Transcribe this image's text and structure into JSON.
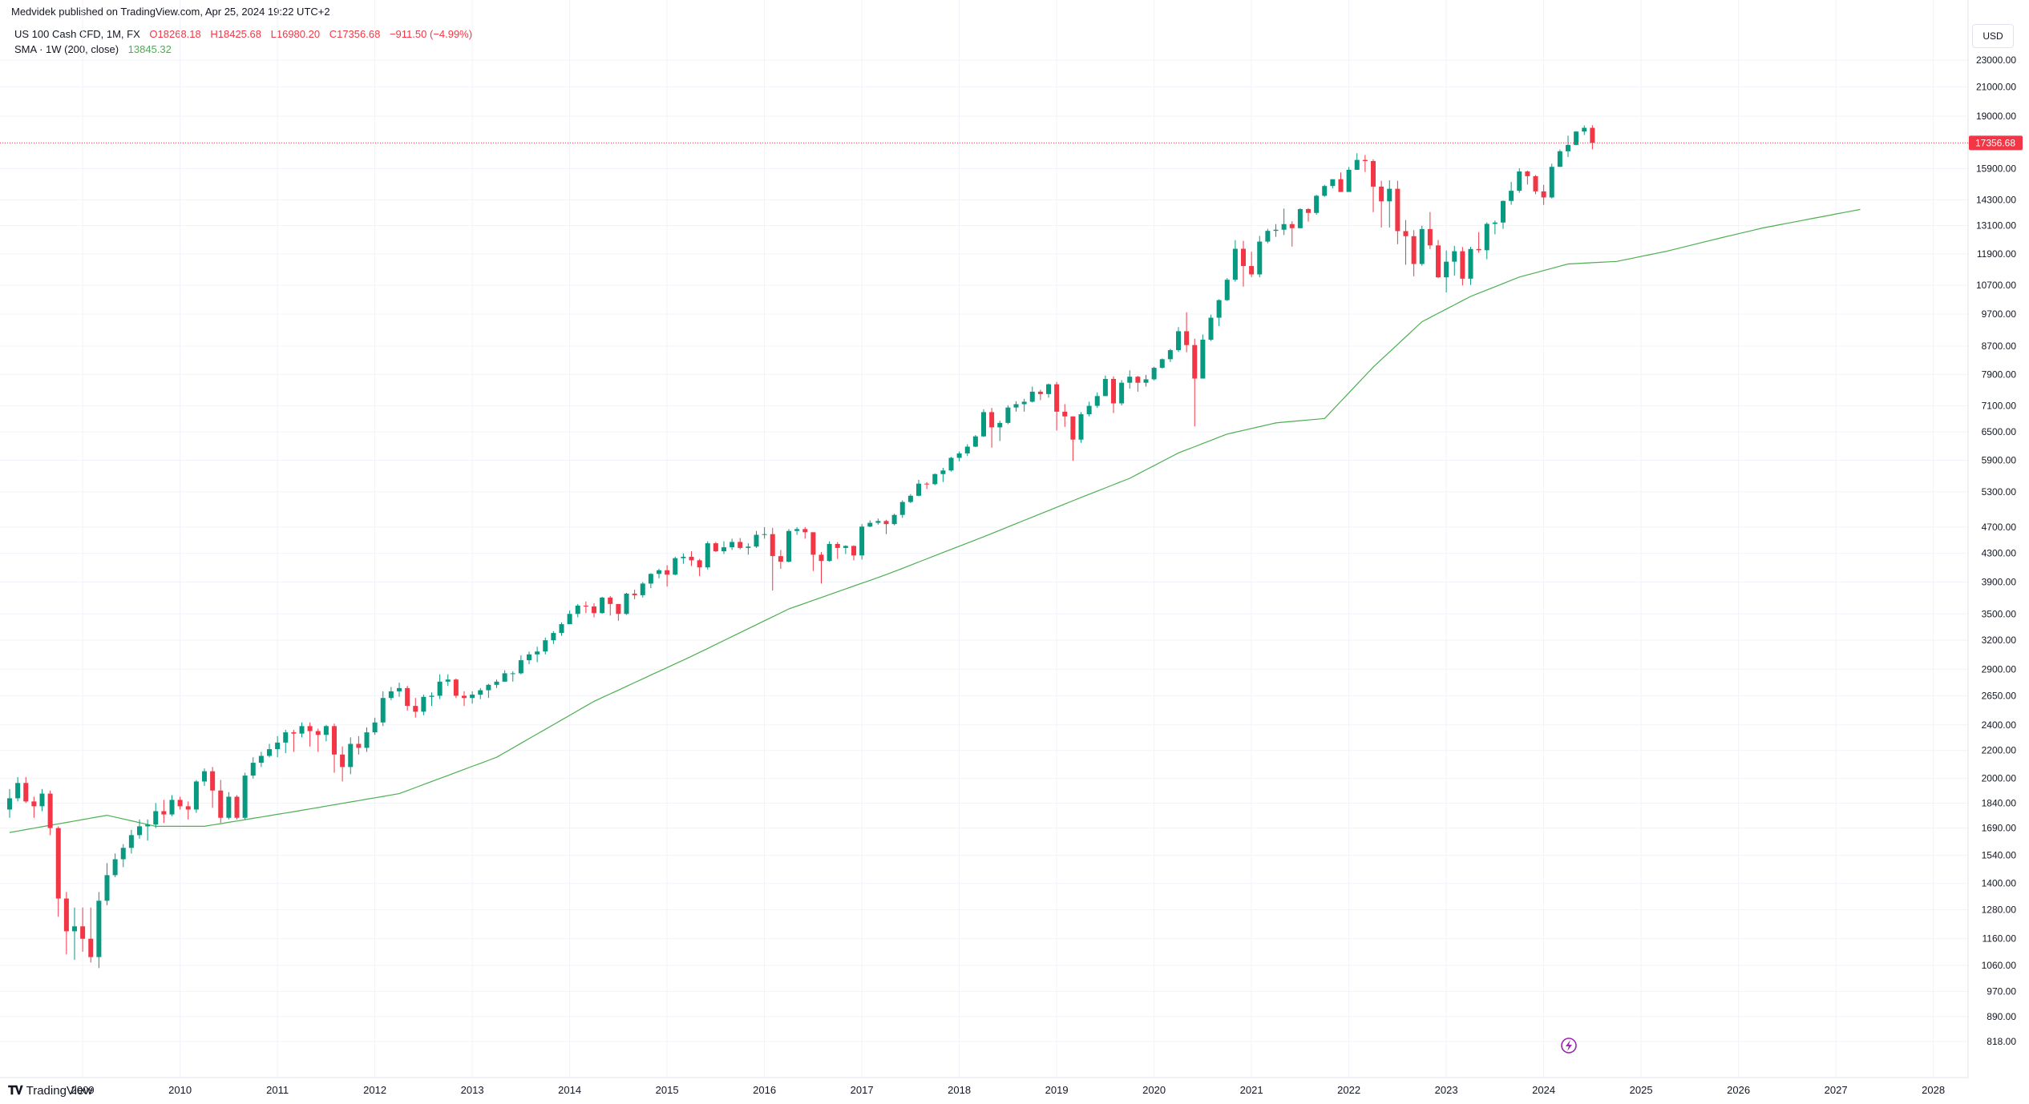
{
  "header": {
    "published": "Medvidek published on TradingView.com, Apr 25, 2024 19:22 UTC+2"
  },
  "legend": {
    "symbol": "US 100 Cash CFD, 1M, FX",
    "open": "O18268.18",
    "high": "H18425.68",
    "low": "L16980.20",
    "close": "C17356.68",
    "change": "−911.50 (−4.99%)",
    "sma_label": "SMA · 1W (200, close)",
    "sma_value": "13845.32"
  },
  "currency": "USD",
  "last_price_label": "17356.68",
  "footer": {
    "brand": "TradingView"
  },
  "colors": {
    "up": "#089981",
    "down": "#f23645",
    "sma": "#4caf50",
    "grid": "#f0f3fa",
    "axis_text": "#131722",
    "replay": "#9c27b0"
  },
  "chart_data": {
    "type": "candlestick",
    "scale": "log",
    "interval": "1M",
    "ylim": [
      780,
      26000
    ],
    "x_range": [
      "2008-04",
      "2028-08"
    ],
    "y_ticks": [
      23000,
      21000,
      19000,
      15900,
      14300,
      13100,
      11900,
      10700,
      9700,
      8700,
      7900,
      7100,
      6500,
      5900,
      5300,
      4700,
      4300,
      3900,
      3500,
      3200,
      2900,
      2650,
      2400,
      2200,
      2000,
      1840,
      1690,
      1540,
      1400,
      1280,
      1160,
      1060,
      970,
      890,
      818
    ],
    "y_tick_labels": [
      "23000.00",
      "21000.00",
      "19000.00",
      "15900.00",
      "14300.00",
      "13100.00",
      "11900.00",
      "10700.00",
      "9700.00",
      "8700.00",
      "7900.00",
      "7100.00",
      "6500.00",
      "5900.00",
      "5300.00",
      "4700.00",
      "4300.00",
      "3900.00",
      "3500.00",
      "3200.00",
      "2900.00",
      "2650.00",
      "2400.00",
      "2200.00",
      "2000.00",
      "1840.00",
      "1690.00",
      "1540.00",
      "1400.00",
      "1280.00",
      "1160.00",
      "1060.00",
      "970.00",
      "890.00",
      "818.00"
    ],
    "x_ticks": [
      "2009",
      "2010",
      "2011",
      "2012",
      "2013",
      "2014",
      "2015",
      "2016",
      "2017",
      "2018",
      "2019",
      "2020",
      "2021",
      "2022",
      "2023",
      "2024",
      "2025",
      "2026",
      "2027",
      "2028"
    ],
    "last_price": 17356.68,
    "start_month": "2008-04",
    "candles": [
      [
        1800,
        1930,
        1750,
        1870
      ],
      [
        1870,
        2010,
        1850,
        1970
      ],
      [
        1970,
        2010,
        1840,
        1850
      ],
      [
        1850,
        1880,
        1750,
        1820
      ],
      [
        1820,
        1930,
        1790,
        1900
      ],
      [
        1900,
        1920,
        1650,
        1690
      ],
      [
        1690,
        1700,
        1250,
        1330
      ],
      [
        1330,
        1360,
        1100,
        1190
      ],
      [
        1190,
        1290,
        1080,
        1210
      ],
      [
        1210,
        1290,
        1110,
        1160
      ],
      [
        1160,
        1290,
        1070,
        1090
      ],
      [
        1090,
        1360,
        1050,
        1320
      ],
      [
        1320,
        1500,
        1300,
        1440
      ],
      [
        1440,
        1550,
        1430,
        1520
      ],
      [
        1520,
        1600,
        1480,
        1580
      ],
      [
        1580,
        1680,
        1550,
        1650
      ],
      [
        1650,
        1740,
        1630,
        1700
      ],
      [
        1700,
        1740,
        1620,
        1710
      ],
      [
        1710,
        1840,
        1690,
        1790
      ],
      [
        1790,
        1860,
        1720,
        1770
      ],
      [
        1770,
        1890,
        1760,
        1860
      ],
      [
        1860,
        1880,
        1800,
        1820
      ],
      [
        1820,
        1850,
        1740,
        1800
      ],
      [
        1800,
        1990,
        1780,
        1980
      ],
      [
        1980,
        2070,
        1950,
        2050
      ],
      [
        2050,
        2080,
        1810,
        1920
      ],
      [
        1920,
        1990,
        1720,
        1750
      ],
      [
        1750,
        1910,
        1740,
        1880
      ],
      [
        1880,
        1890,
        1740,
        1750
      ],
      [
        1750,
        2040,
        1740,
        2020
      ],
      [
        2020,
        2150,
        2000,
        2110
      ],
      [
        2110,
        2190,
        2080,
        2160
      ],
      [
        2160,
        2250,
        2150,
        2210
      ],
      [
        2210,
        2310,
        2150,
        2260
      ],
      [
        2260,
        2360,
        2180,
        2340
      ],
      [
        2340,
        2360,
        2190,
        2330
      ],
      [
        2330,
        2420,
        2300,
        2390
      ],
      [
        2390,
        2420,
        2230,
        2350
      ],
      [
        2350,
        2370,
        2190,
        2320
      ],
      [
        2320,
        2400,
        2270,
        2390
      ],
      [
        2390,
        2410,
        2040,
        2170
      ],
      [
        2170,
        2230,
        1980,
        2080
      ],
      [
        2080,
        2300,
        2030,
        2250
      ],
      [
        2250,
        2310,
        2170,
        2220
      ],
      [
        2220,
        2380,
        2190,
        2340
      ],
      [
        2340,
        2460,
        2320,
        2420
      ],
      [
        2420,
        2690,
        2390,
        2630
      ],
      [
        2630,
        2730,
        2610,
        2690
      ],
      [
        2690,
        2770,
        2640,
        2720
      ],
      [
        2720,
        2740,
        2520,
        2560
      ],
      [
        2560,
        2630,
        2460,
        2510
      ],
      [
        2510,
        2660,
        2480,
        2640
      ],
      [
        2640,
        2680,
        2560,
        2650
      ],
      [
        2650,
        2850,
        2620,
        2780
      ],
      [
        2780,
        2850,
        2740,
        2800
      ],
      [
        2800,
        2810,
        2630,
        2650
      ],
      [
        2650,
        2690,
        2560,
        2630
      ],
      [
        2630,
        2690,
        2580,
        2660
      ],
      [
        2660,
        2720,
        2620,
        2700
      ],
      [
        2700,
        2760,
        2630,
        2750
      ],
      [
        2750,
        2800,
        2720,
        2780
      ],
      [
        2780,
        2890,
        2780,
        2860
      ],
      [
        2860,
        2880,
        2780,
        2860
      ],
      [
        2860,
        3040,
        2850,
        2990
      ],
      [
        2990,
        3080,
        2950,
        3050
      ],
      [
        3050,
        3130,
        2970,
        3080
      ],
      [
        3080,
        3230,
        3050,
        3200
      ],
      [
        3200,
        3300,
        3160,
        3280
      ],
      [
        3280,
        3400,
        3250,
        3380
      ],
      [
        3380,
        3540,
        3380,
        3500
      ],
      [
        3500,
        3620,
        3460,
        3600
      ],
      [
        3600,
        3650,
        3510,
        3590
      ],
      [
        3590,
        3630,
        3460,
        3510
      ],
      [
        3510,
        3710,
        3500,
        3700
      ],
      [
        3700,
        3720,
        3480,
        3620
      ],
      [
        3620,
        3620,
        3420,
        3500
      ],
      [
        3500,
        3760,
        3490,
        3750
      ],
      [
        3750,
        3800,
        3680,
        3730
      ],
      [
        3730,
        3900,
        3700,
        3880
      ],
      [
        3880,
        4020,
        3820,
        4010
      ],
      [
        4010,
        4080,
        3950,
        4060
      ],
      [
        4060,
        4130,
        3840,
        4000
      ],
      [
        4000,
        4250,
        3990,
        4230
      ],
      [
        4230,
        4300,
        4150,
        4250
      ],
      [
        4250,
        4330,
        4120,
        4200
      ],
      [
        4200,
        4220,
        3980,
        4100
      ],
      [
        4100,
        4480,
        4070,
        4450
      ],
      [
        4450,
        4470,
        4320,
        4330
      ],
      [
        4330,
        4480,
        4290,
        4390
      ],
      [
        4390,
        4520,
        4350,
        4470
      ],
      [
        4470,
        4530,
        4360,
        4380
      ],
      [
        4380,
        4450,
        4280,
        4400
      ],
      [
        4400,
        4640,
        4380,
        4580
      ],
      [
        4580,
        4700,
        4520,
        4590
      ],
      [
        4590,
        4690,
        3790,
        4260
      ],
      [
        4260,
        4350,
        4080,
        4180
      ],
      [
        4180,
        4670,
        4170,
        4640
      ],
      [
        4640,
        4700,
        4580,
        4670
      ],
      [
        4670,
        4700,
        4520,
        4620
      ],
      [
        4620,
        4620,
        4050,
        4280
      ],
      [
        4280,
        4320,
        3880,
        4190
      ],
      [
        4190,
        4480,
        4180,
        4440
      ],
      [
        4440,
        4470,
        4220,
        4380
      ],
      [
        4380,
        4420,
        4290,
        4410
      ],
      [
        4410,
        4420,
        4200,
        4270
      ],
      [
        4270,
        4750,
        4210,
        4710
      ],
      [
        4710,
        4810,
        4700,
        4770
      ],
      [
        4770,
        4840,
        4740,
        4800
      ],
      [
        4800,
        4820,
        4590,
        4750
      ],
      [
        4750,
        4920,
        4730,
        4900
      ],
      [
        4900,
        5150,
        4850,
        5120
      ],
      [
        5120,
        5260,
        5100,
        5230
      ],
      [
        5230,
        5520,
        5220,
        5450
      ],
      [
        5450,
        5480,
        5350,
        5440
      ],
      [
        5440,
        5640,
        5420,
        5630
      ],
      [
        5630,
        5750,
        5480,
        5700
      ],
      [
        5700,
        5970,
        5680,
        5950
      ],
      [
        5950,
        6080,
        5880,
        6040
      ],
      [
        6040,
        6230,
        5990,
        6180
      ],
      [
        6180,
        6430,
        6170,
        6400
      ],
      [
        6400,
        7020,
        6390,
        6950
      ],
      [
        6950,
        7050,
        6160,
        6600
      ],
      [
        6600,
        6750,
        6300,
        6700
      ],
      [
        6700,
        7110,
        6670,
        7060
      ],
      [
        7060,
        7210,
        6960,
        7140
      ],
      [
        7140,
        7270,
        6960,
        7200
      ],
      [
        7200,
        7580,
        7180,
        7450
      ],
      [
        7450,
        7500,
        7240,
        7390
      ],
      [
        7390,
        7660,
        7300,
        7640
      ],
      [
        7640,
        7700,
        6530,
        6960
      ],
      [
        6960,
        7140,
        6610,
        6850
      ],
      [
        6850,
        6850,
        5890,
        6330
      ],
      [
        6330,
        6950,
        6260,
        6900
      ],
      [
        6900,
        7200,
        6850,
        7100
      ],
      [
        7100,
        7430,
        7050,
        7340
      ],
      [
        7340,
        7870,
        7340,
        7780
      ],
      [
        7780,
        7850,
        6930,
        7160
      ],
      [
        7160,
        7750,
        7110,
        7680
      ],
      [
        7680,
        8010,
        7530,
        7840
      ],
      [
        7840,
        7860,
        7450,
        7680
      ],
      [
        7680,
        7890,
        7580,
        7770
      ],
      [
        7770,
        8110,
        7740,
        8080
      ],
      [
        8080,
        8340,
        8060,
        8320
      ],
      [
        8320,
        8620,
        8240,
        8580
      ],
      [
        8580,
        9280,
        8530,
        9150
      ],
      [
        9150,
        9760,
        8520,
        8730
      ],
      [
        8730,
        8920,
        6620,
        7790
      ],
      [
        7790,
        9050,
        7800,
        8890
      ],
      [
        8890,
        9680,
        8850,
        9580
      ],
      [
        9580,
        10200,
        9310,
        10170
      ],
      [
        10170,
        10960,
        10140,
        10900
      ],
      [
        10900,
        12470,
        10830,
        12110
      ],
      [
        12110,
        12440,
        10650,
        11420
      ],
      [
        11420,
        11990,
        11000,
        11100
      ],
      [
        11100,
        12650,
        10990,
        12410
      ],
      [
        12410,
        12960,
        12340,
        12870
      ],
      [
        12870,
        13170,
        12610,
        12920
      ],
      [
        12920,
        13880,
        12690,
        13170
      ],
      [
        13170,
        13300,
        12200,
        12990
      ],
      [
        12990,
        13900,
        12980,
        13860
      ],
      [
        13860,
        13900,
        13280,
        13680
      ],
      [
        13680,
        14550,
        13600,
        14500
      ],
      [
        14500,
        15050,
        14450,
        14990
      ],
      [
        14990,
        15330,
        14870,
        15340
      ],
      [
        15340,
        15700,
        14690,
        14690
      ],
      [
        14690,
        15990,
        14720,
        15840
      ],
      [
        15840,
        16760,
        15830,
        16380
      ],
      [
        16380,
        16660,
        15720,
        16320
      ],
      [
        16320,
        16420,
        13720,
        14960
      ],
      [
        14960,
        15260,
        13020,
        14230
      ],
      [
        14230,
        15290,
        13020,
        14850
      ],
      [
        14850,
        15260,
        12300,
        12860
      ],
      [
        12860,
        13350,
        11470,
        12640
      ],
      [
        12640,
        12900,
        11030,
        11500
      ],
      [
        11500,
        13100,
        11430,
        12950
      ],
      [
        12950,
        13720,
        12100,
        12250
      ],
      [
        12250,
        12480,
        10960,
        10990
      ],
      [
        10990,
        12040,
        10440,
        11590
      ],
      [
        11590,
        12230,
        11050,
        12010
      ],
      [
        12010,
        12180,
        10690,
        10940
      ],
      [
        10940,
        12190,
        10710,
        12100
      ],
      [
        12100,
        12810,
        11950,
        12050
      ],
      [
        12050,
        13250,
        11690,
        13180
      ],
      [
        13180,
        13330,
        12720,
        13240
      ],
      [
        13240,
        14270,
        12960,
        14250
      ],
      [
        14250,
        15200,
        14070,
        14750
      ],
      [
        14750,
        15920,
        14650,
        15750
      ],
      [
        15750,
        15800,
        15070,
        15500
      ],
      [
        15500,
        15560,
        14580,
        14720
      ],
      [
        14720,
        15050,
        14060,
        14420
      ],
      [
        14420,
        16170,
        14370,
        16000
      ],
      [
        16000,
        16970,
        15990,
        16870
      ],
      [
        16870,
        17790,
        16540,
        17240
      ],
      [
        17240,
        18060,
        17220,
        18040
      ],
      [
        18040,
        18420,
        17830,
        18270
      ],
      [
        18270,
        18430,
        16980,
        17357
      ]
    ],
    "sma_anchor_months": [
      0,
      12,
      18,
      24,
      36,
      48,
      60,
      72,
      84,
      96,
      108,
      120,
      132,
      138,
      144,
      150,
      156,
      162,
      168,
      174,
      180,
      186,
      192,
      198,
      204,
      210,
      216,
      228
    ],
    "sma_anchor_values": [
      1665,
      1765,
      1700,
      1700,
      1795,
      1900,
      2150,
      2600,
      3030,
      3560,
      4000,
      4550,
      5200,
      5550,
      6050,
      6450,
      6700,
      6800,
      8100,
      9450,
      10300,
      11000,
      11500,
      11600,
      12000,
      12500,
      13000,
      13845
    ]
  }
}
